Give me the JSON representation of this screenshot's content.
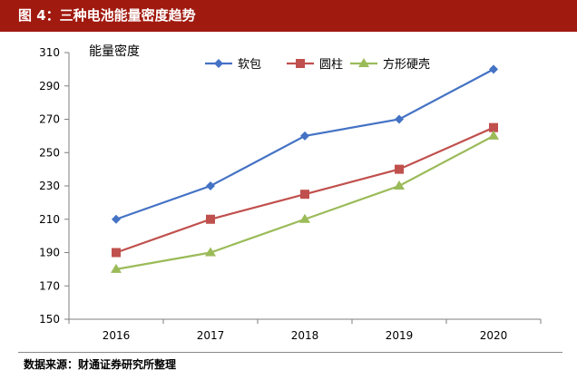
{
  "header": {
    "title": "图 4：三种电池能量密度趋势"
  },
  "footer": {
    "source": "数据来源：财通证券研究所整理"
  },
  "chart_data": {
    "type": "line",
    "title": "",
    "ylabel": "能量密度",
    "xlabel": "",
    "x": [
      "2016",
      "2017",
      "2018",
      "2019",
      "2020"
    ],
    "ylim": [
      150,
      310
    ],
    "yticks": [
      150,
      170,
      190,
      210,
      230,
      250,
      270,
      290,
      310
    ],
    "grid": false,
    "legend_position": "top",
    "series": [
      {
        "name": "软包",
        "color": "#4472c4",
        "marker": "diamond",
        "values": [
          210,
          230,
          260,
          270,
          300
        ]
      },
      {
        "name": "圆柱",
        "color": "#c0504d",
        "marker": "square",
        "values": [
          190,
          210,
          225,
          240,
          265
        ]
      },
      {
        "name": "方形硬壳",
        "color": "#9bbb59",
        "marker": "triangle",
        "values": [
          180,
          190,
          210,
          230,
          260
        ]
      }
    ]
  }
}
